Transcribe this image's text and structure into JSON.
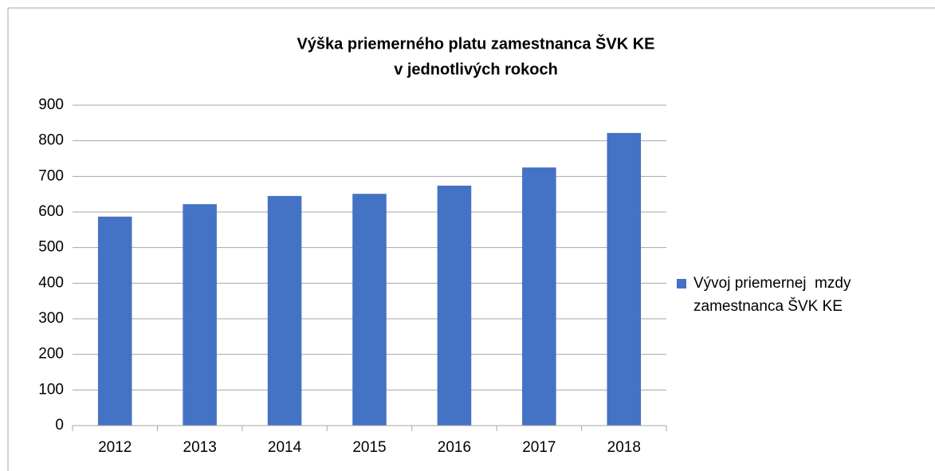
{
  "chart_data": {
    "type": "bar",
    "title": [
      "Výška priemerného platu zamestnanca ŠVK KE",
      "v jednotlivých rokoch"
    ],
    "categories": [
      "2012",
      "2013",
      "2014",
      "2015",
      "2016",
      "2017",
      "2018"
    ],
    "series": [
      {
        "name": "Vývoj priemernej  mzdy zamestnanca ŠVK KE",
        "color": "#4472c4",
        "values": [
          587,
          622,
          645,
          651,
          674,
          725,
          822
        ]
      }
    ],
    "ylim": [
      0,
      900
    ],
    "yticks": [
      0,
      100,
      200,
      300,
      400,
      500,
      600,
      700,
      800,
      900
    ],
    "grid": true,
    "legend": "right"
  }
}
